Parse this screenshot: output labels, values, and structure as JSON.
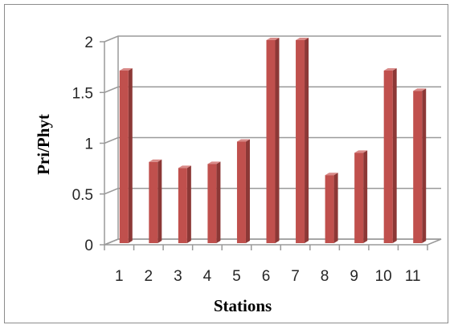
{
  "chart_data": {
    "type": "bar",
    "style": "3d-column",
    "categories": [
      "1",
      "2",
      "3",
      "4",
      "5",
      "6",
      "7",
      "8",
      "9",
      "10",
      "11"
    ],
    "values": [
      1.7,
      0.8,
      0.74,
      0.78,
      1.0,
      2.0,
      2.0,
      0.67,
      0.89,
      1.7,
      1.5
    ],
    "xlabel": "Stations",
    "ylabel": "Pri/Phyt",
    "ylim": [
      0,
      2
    ],
    "yticks": [
      "0",
      "0.5",
      "1",
      "1.5",
      "2"
    ],
    "grid": true,
    "legend": "none",
    "colors": {
      "bar_front": "#c0504d",
      "bar_side": "#8c3836",
      "bar_top": "#d98a88",
      "gridline": "#9a9a9a",
      "wall": "#9a9a9a"
    }
  }
}
